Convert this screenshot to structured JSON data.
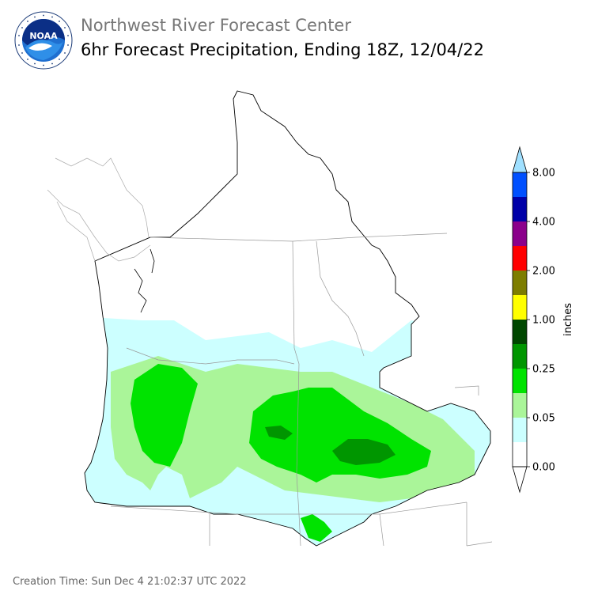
{
  "header": {
    "title": "Northwest River Forecast Center",
    "subtitle": "6hr Forecast Precipitation, Ending 18Z, 12/04/22"
  },
  "logo": {
    "text": "NOAA",
    "ring_text": "NATIONAL OCEANIC AND ATMOSPHERIC ADMINISTRATION · U.S. DEPARTMENT OF COMMERCE"
  },
  "legend": {
    "unit_label": "inches",
    "colors": [
      "#ffffff",
      "#ccffff",
      "#aaf599",
      "#00e300",
      "#009600",
      "#004700",
      "#ffff00",
      "#7d7d00",
      "#ff0000",
      "#8b008b",
      "#0000a8",
      "#0050ff",
      "#a0e0ff"
    ],
    "tick_labels": [
      "0.00",
      "0.05",
      "0.25",
      "1.00",
      "2.00",
      "4.00",
      "8.00"
    ]
  },
  "footer": {
    "creation_time": "Creation Time: Sun Dec 4 21:02:37 UTC 2022"
  }
}
